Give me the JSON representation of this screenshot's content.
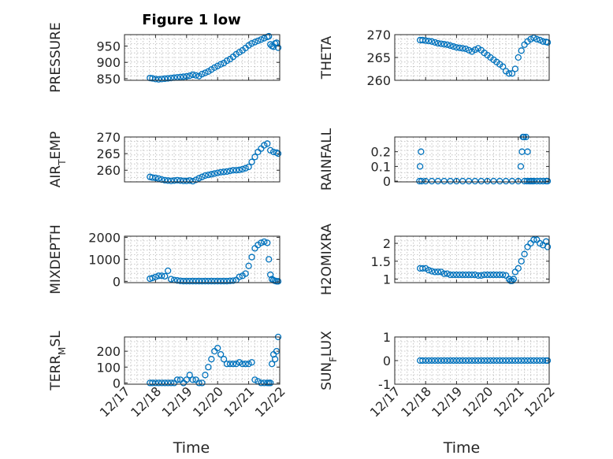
{
  "chart_data": [
    {
      "type": "scatter",
      "title": "Figure 1 low",
      "ylabel": "PRESSURE",
      "ylim": [
        845,
        985
      ],
      "yticks": [
        850,
        900,
        950
      ],
      "xlim": [
        0,
        5
      ],
      "xticklabels": [
        "12/17",
        "12/18",
        "12/19",
        "12/20",
        "12/21",
        "12/22"
      ],
      "show_xticks": false,
      "series": [
        {
          "name": "PRESSURE",
          "x": [
            0.82,
            0.9,
            1.0,
            1.1,
            1.2,
            1.3,
            1.4,
            1.5,
            1.6,
            1.7,
            1.8,
            1.9,
            2.0,
            2.1,
            2.2,
            2.3,
            2.4,
            2.5,
            2.6,
            2.7,
            2.8,
            2.9,
            3.0,
            3.1,
            3.2,
            3.3,
            3.4,
            3.5,
            3.6,
            3.7,
            3.8,
            3.9,
            4.0,
            4.1,
            4.2,
            4.3,
            4.4,
            4.5,
            4.6,
            4.65,
            4.7,
            4.75,
            4.8,
            4.85,
            4.9,
            4.95
          ],
          "y": [
            852,
            851,
            849,
            848,
            849,
            850,
            851,
            852,
            853,
            854,
            855,
            856,
            857,
            859,
            862,
            860,
            858,
            864,
            868,
            872,
            878,
            884,
            889,
            894,
            898,
            905,
            910,
            917,
            925,
            931,
            937,
            944,
            952,
            958,
            962,
            966,
            970,
            974,
            978,
            980,
            955,
            950,
            948,
            958,
            960,
            945
          ]
        }
      ]
    },
    {
      "type": "scatter",
      "title": "",
      "ylabel": "THETA",
      "ylim": [
        260,
        270
      ],
      "yticks": [
        260,
        265,
        270
      ],
      "xlim": [
        0,
        5
      ],
      "xticklabels": [
        "12/17",
        "12/18",
        "12/19",
        "12/20",
        "12/21",
        "12/22"
      ],
      "show_xticks": false,
      "series": [
        {
          "name": "THETA",
          "x": [
            0.82,
            0.9,
            1.0,
            1.1,
            1.2,
            1.3,
            1.4,
            1.5,
            1.6,
            1.7,
            1.8,
            1.9,
            2.0,
            2.1,
            2.2,
            2.3,
            2.4,
            2.5,
            2.6,
            2.7,
            2.8,
            2.9,
            3.0,
            3.1,
            3.2,
            3.3,
            3.4,
            3.5,
            3.6,
            3.7,
            3.8,
            3.9,
            4.0,
            4.1,
            4.2,
            4.3,
            4.4,
            4.5,
            4.6,
            4.7,
            4.8,
            4.9,
            4.95
          ],
          "y": [
            268.8,
            268.8,
            268.7,
            268.6,
            268.5,
            268.3,
            268.1,
            268.0,
            267.9,
            267.8,
            267.6,
            267.4,
            267.2,
            267.1,
            267.0,
            266.9,
            266.6,
            266.3,
            266.7,
            267.0,
            266.6,
            266.0,
            265.5,
            265.0,
            264.5,
            264.0,
            263.5,
            263.0,
            262.0,
            261.5,
            261.5,
            262.5,
            265.0,
            266.5,
            267.8,
            268.5,
            269.0,
            269.3,
            269.0,
            268.8,
            268.5,
            268.4,
            268.3
          ]
        }
      ]
    },
    {
      "type": "scatter",
      "title": "",
      "ylabel": "AIR_TEMP",
      "ylim": [
        256.5,
        270
      ],
      "yticks": [
        260,
        265,
        270
      ],
      "xlim": [
        0,
        5
      ],
      "xticklabels": [
        "12/17",
        "12/18",
        "12/19",
        "12/20",
        "12/21",
        "12/22"
      ],
      "show_xticks": false,
      "series": [
        {
          "name": "AIR_TEMP",
          "x": [
            0.82,
            0.9,
            1.0,
            1.1,
            1.2,
            1.3,
            1.4,
            1.5,
            1.6,
            1.7,
            1.8,
            1.9,
            2.0,
            2.1,
            2.2,
            2.3,
            2.4,
            2.5,
            2.6,
            2.7,
            2.8,
            2.9,
            3.0,
            3.1,
            3.2,
            3.3,
            3.4,
            3.5,
            3.6,
            3.7,
            3.8,
            3.9,
            4.0,
            4.1,
            4.2,
            4.3,
            4.4,
            4.5,
            4.6,
            4.7,
            4.8,
            4.9,
            4.95
          ],
          "y": [
            258.0,
            257.8,
            257.7,
            257.5,
            257.2,
            257.0,
            256.9,
            256.8,
            256.9,
            257.0,
            256.9,
            256.8,
            256.8,
            256.9,
            256.7,
            257.1,
            257.6,
            258.0,
            258.4,
            258.6,
            258.8,
            259.0,
            259.2,
            259.4,
            259.5,
            259.6,
            259.8,
            260.0,
            260.0,
            260.1,
            260.3,
            260.6,
            261.0,
            262.5,
            264.0,
            265.5,
            266.5,
            267.5,
            268.0,
            266.0,
            265.5,
            265.3,
            265.0
          ]
        }
      ]
    },
    {
      "type": "scatter",
      "title": "",
      "ylabel": "RAINFALL",
      "ylim": [
        -0.005,
        0.3
      ],
      "yticks": [
        0,
        0.1,
        0.2
      ],
      "xlim": [
        0,
        5
      ],
      "xticklabels": [
        "12/17",
        "12/18",
        "12/19",
        "12/20",
        "12/21",
        "12/22"
      ],
      "show_xticks": false,
      "series": [
        {
          "name": "RAINFALL",
          "x": [
            0.8,
            0.82,
            0.85,
            0.87,
            1.0,
            1.2,
            1.4,
            1.6,
            1.8,
            2.0,
            2.2,
            2.4,
            2.6,
            2.8,
            3.0,
            3.2,
            3.4,
            3.6,
            3.8,
            4.0,
            4.08,
            4.12,
            4.15,
            4.18,
            4.2,
            4.25,
            4.28,
            4.3,
            4.35,
            4.4,
            4.45,
            4.5,
            4.6,
            4.7,
            4.8,
            4.9,
            4.95
          ],
          "y": [
            0,
            0.1,
            0.2,
            0,
            0,
            0,
            0,
            0,
            0,
            0,
            0,
            0,
            0,
            0,
            0,
            0,
            0,
            0,
            0,
            0,
            0.1,
            0.2,
            0.3,
            0.3,
            0,
            0.3,
            0,
            0.2,
            0,
            0,
            0,
            0,
            0,
            0,
            0,
            0,
            0
          ]
        }
      ]
    },
    {
      "type": "scatter",
      "title": "",
      "ylabel": "MIXDEPTH",
      "ylim": [
        -60,
        2050
      ],
      "yticks": [
        0,
        1000,
        2000
      ],
      "xlim": [
        0,
        5
      ],
      "xticklabels": [
        "12/17",
        "12/18",
        "12/19",
        "12/20",
        "12/21",
        "12/22"
      ],
      "show_xticks": false,
      "series": [
        {
          "name": "MIXDEPTH",
          "x": [
            0.82,
            0.9,
            1.0,
            1.1,
            1.2,
            1.3,
            1.4,
            1.5,
            1.6,
            1.7,
            1.8,
            1.9,
            2.0,
            2.1,
            2.2,
            2.3,
            2.4,
            2.5,
            2.6,
            2.7,
            2.8,
            2.9,
            3.0,
            3.1,
            3.2,
            3.3,
            3.4,
            3.5,
            3.6,
            3.7,
            3.8,
            3.9,
            4.0,
            4.1,
            4.2,
            4.3,
            4.4,
            4.5,
            4.6,
            4.65,
            4.7,
            4.75,
            4.8,
            4.85,
            4.9,
            4.95
          ],
          "y": [
            120,
            150,
            200,
            250,
            250,
            230,
            480,
            100,
            60,
            40,
            20,
            10,
            10,
            10,
            10,
            10,
            10,
            10,
            10,
            10,
            10,
            10,
            10,
            10,
            10,
            10,
            20,
            30,
            60,
            200,
            250,
            350,
            700,
            1100,
            1500,
            1650,
            1750,
            1800,
            1750,
            1000,
            300,
            100,
            50,
            20,
            0,
            0
          ]
        }
      ]
    },
    {
      "type": "scatter",
      "title": "",
      "ylabel": "H2OMIXRA",
      "ylim": [
        0.9,
        2.2
      ],
      "yticks": [
        1,
        1.5,
        2
      ],
      "xlim": [
        0,
        5
      ],
      "xticklabels": [
        "12/17",
        "12/18",
        "12/19",
        "12/20",
        "12/21",
        "12/22"
      ],
      "show_xticks": false,
      "series": [
        {
          "name": "H2OMIXRA",
          "x": [
            0.82,
            0.9,
            1.0,
            1.1,
            1.2,
            1.3,
            1.4,
            1.5,
            1.6,
            1.7,
            1.8,
            1.9,
            2.0,
            2.1,
            2.2,
            2.3,
            2.4,
            2.5,
            2.6,
            2.7,
            2.8,
            2.9,
            3.0,
            3.1,
            3.2,
            3.3,
            3.4,
            3.5,
            3.6,
            3.7,
            3.75,
            3.8,
            3.85,
            3.9,
            4.0,
            4.1,
            4.2,
            4.3,
            4.4,
            4.5,
            4.6,
            4.7,
            4.8,
            4.9,
            4.95
          ],
          "y": [
            1.3,
            1.3,
            1.3,
            1.25,
            1.22,
            1.2,
            1.2,
            1.2,
            1.15,
            1.15,
            1.12,
            1.12,
            1.12,
            1.12,
            1.12,
            1.12,
            1.12,
            1.12,
            1.12,
            1.1,
            1.1,
            1.12,
            1.12,
            1.12,
            1.12,
            1.12,
            1.12,
            1.12,
            1.1,
            1.0,
            0.95,
            0.95,
            1.0,
            1.2,
            1.3,
            1.5,
            1.7,
            1.9,
            2.0,
            2.1,
            2.1,
            2.0,
            1.95,
            2.05,
            1.9
          ]
        }
      ]
    },
    {
      "type": "scatter",
      "title": "",
      "ylabel": "TERR_MSL",
      "ylim": [
        -8,
        290
      ],
      "yticks": [
        0,
        100,
        200
      ],
      "xlim": [
        0,
        5
      ],
      "xticklabels": [
        "12/17",
        "12/18",
        "12/19",
        "12/20",
        "12/21",
        "12/22"
      ],
      "show_xticks": true,
      "series": [
        {
          "name": "TERR_MSL",
          "x": [
            0.82,
            0.9,
            1.0,
            1.1,
            1.2,
            1.3,
            1.4,
            1.5,
            1.6,
            1.7,
            1.8,
            1.9,
            2.0,
            2.1,
            2.2,
            2.3,
            2.4,
            2.5,
            2.6,
            2.7,
            2.8,
            2.9,
            3.0,
            3.1,
            3.2,
            3.3,
            3.4,
            3.5,
            3.6,
            3.7,
            3.8,
            3.9,
            4.0,
            4.1,
            4.2,
            4.3,
            4.4,
            4.5,
            4.6,
            4.65,
            4.7,
            4.75,
            4.8,
            4.85,
            4.9,
            4.95
          ],
          "y": [
            0,
            0,
            0,
            0,
            0,
            0,
            0,
            0,
            0,
            20,
            20,
            0,
            20,
            50,
            20,
            20,
            0,
            0,
            50,
            100,
            150,
            200,
            220,
            180,
            150,
            120,
            120,
            120,
            120,
            130,
            120,
            120,
            120,
            130,
            20,
            10,
            0,
            0,
            0,
            0,
            0,
            120,
            180,
            150,
            200,
            290
          ]
        }
      ]
    },
    {
      "type": "scatter",
      "title": "",
      "ylabel": "SUN_FLUX",
      "ylim": [
        -1,
        1
      ],
      "yticks": [
        -1,
        0,
        1
      ],
      "xlim": [
        0,
        5
      ],
      "xticklabels": [
        "12/17",
        "12/18",
        "12/19",
        "12/20",
        "12/21",
        "12/22"
      ],
      "show_xticks": true,
      "series": [
        {
          "name": "SUN_FLUX",
          "x": [
            0.82,
            0.9,
            1.0,
            1.1,
            1.2,
            1.3,
            1.4,
            1.5,
            1.6,
            1.7,
            1.8,
            1.9,
            2.0,
            2.1,
            2.2,
            2.3,
            2.4,
            2.5,
            2.6,
            2.7,
            2.8,
            2.9,
            3.0,
            3.1,
            3.2,
            3.3,
            3.4,
            3.5,
            3.6,
            3.7,
            3.8,
            3.9,
            4.0,
            4.1,
            4.2,
            4.3,
            4.4,
            4.5,
            4.6,
            4.7,
            4.8,
            4.9,
            4.95
          ],
          "y": [
            0,
            0,
            0,
            0,
            0,
            0,
            0,
            0,
            0,
            0,
            0,
            0,
            0,
            0,
            0,
            0,
            0,
            0,
            0,
            0,
            0,
            0,
            0,
            0,
            0,
            0,
            0,
            0,
            0,
            0,
            0,
            0,
            0,
            0,
            0,
            0,
            0,
            0,
            0,
            0,
            0,
            0,
            0
          ]
        }
      ]
    }
  ],
  "figure": {
    "xlabel_left": "Time",
    "xlabel_right": "Time",
    "marker_color": "#0072bd"
  }
}
